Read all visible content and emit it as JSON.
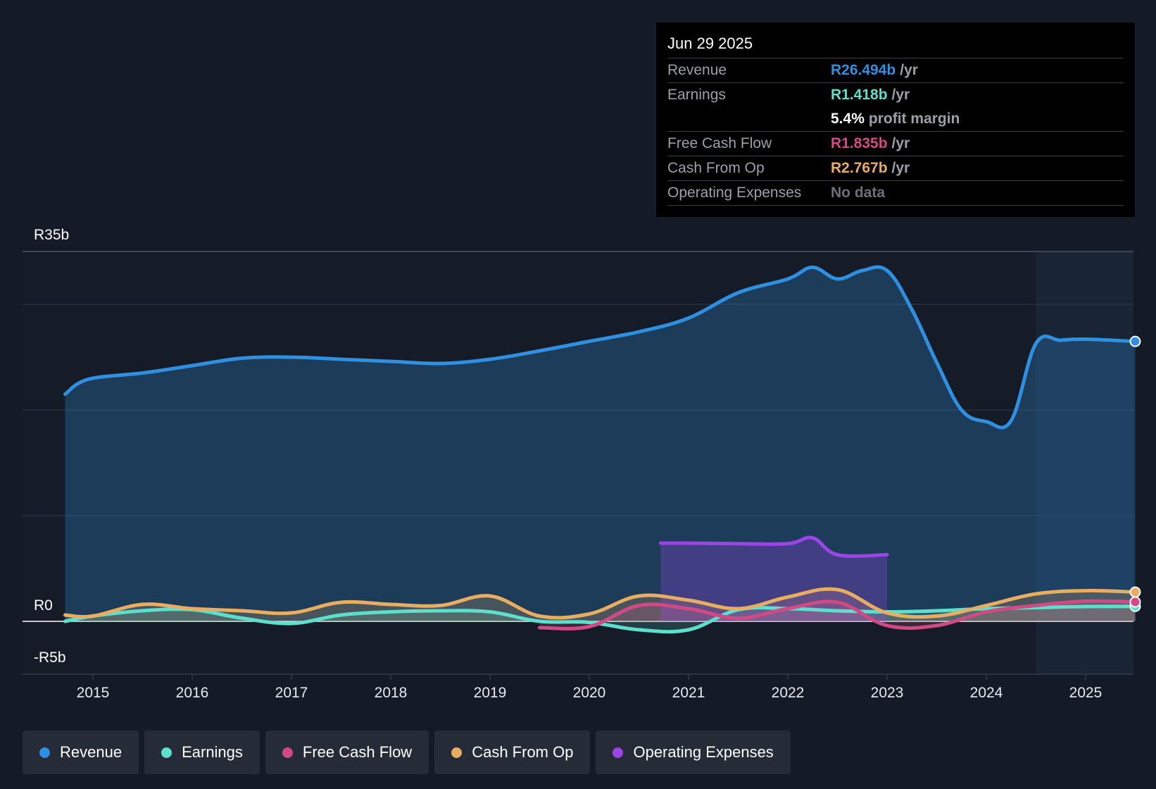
{
  "chart_data": {
    "type": "area",
    "currency_prefix": "R",
    "y_axis": {
      "max_label": "R35b",
      "zero_label": "R0",
      "min_label": "-R5b",
      "ylim": [
        -5,
        35
      ],
      "gridlines": [
        0,
        10,
        20,
        30,
        35
      ]
    },
    "x_axis": {
      "tick_labels": [
        "2015",
        "2016",
        "2017",
        "2018",
        "2019",
        "2020",
        "2021",
        "2022",
        "2023",
        "2024",
        "2025"
      ],
      "ticks": [
        2015,
        2016,
        2017,
        2018,
        2019,
        2020,
        2021,
        2022,
        2023,
        2024,
        2025
      ],
      "xlim": [
        2014.25,
        2025.5
      ]
    },
    "forecast_region_start": 2024.5,
    "series": [
      {
        "name": "Revenue",
        "color": "#2f8fe0",
        "fill": true,
        "points": [
          [
            2014.72,
            21.5
          ],
          [
            2014.95,
            22.9
          ],
          [
            2015.5,
            23.5
          ],
          [
            2016,
            24.2
          ],
          [
            2016.5,
            24.9
          ],
          [
            2017,
            25.0
          ],
          [
            2017.5,
            24.8
          ],
          [
            2018,
            24.6
          ],
          [
            2018.5,
            24.4
          ],
          [
            2019,
            24.8
          ],
          [
            2019.5,
            25.6
          ],
          [
            2020,
            26.5
          ],
          [
            2020.5,
            27.4
          ],
          [
            2021,
            28.7
          ],
          [
            2021.5,
            31.1
          ],
          [
            2022,
            32.4
          ],
          [
            2022.25,
            33.5
          ],
          [
            2022.5,
            32.4
          ],
          [
            2022.75,
            33.2
          ],
          [
            2023,
            33.2
          ],
          [
            2023.25,
            29.5
          ],
          [
            2023.5,
            24.5
          ],
          [
            2023.75,
            20.0
          ],
          [
            2024,
            18.9
          ],
          [
            2024.25,
            19.0
          ],
          [
            2024.5,
            26.3
          ],
          [
            2024.75,
            26.6
          ],
          [
            2025,
            26.7
          ],
          [
            2025.5,
            26.49
          ]
        ]
      },
      {
        "name": "Earnings",
        "color": "#5ce0cd",
        "fill": true,
        "points": [
          [
            2014.72,
            0.0
          ],
          [
            2015,
            0.5
          ],
          [
            2015.5,
            1.0
          ],
          [
            2016,
            1.1
          ],
          [
            2016.5,
            0.3
          ],
          [
            2017,
            -0.2
          ],
          [
            2017.5,
            0.6
          ],
          [
            2018,
            0.9
          ],
          [
            2018.5,
            1.0
          ],
          [
            2019,
            0.9
          ],
          [
            2019.5,
            0.0
          ],
          [
            2020,
            -0.1
          ],
          [
            2020.5,
            -0.8
          ],
          [
            2021,
            -0.8
          ],
          [
            2021.5,
            1.1
          ],
          [
            2022,
            1.2
          ],
          [
            2022.5,
            1.0
          ],
          [
            2023,
            0.9
          ],
          [
            2023.5,
            1.0
          ],
          [
            2024,
            1.2
          ],
          [
            2024.5,
            1.3
          ],
          [
            2025,
            1.4
          ],
          [
            2025.5,
            1.418
          ]
        ]
      },
      {
        "name": "Free Cash Flow",
        "color": "#d14a85",
        "fill": true,
        "points": [
          [
            2019.5,
            -0.6
          ],
          [
            2020,
            -0.5
          ],
          [
            2020.5,
            1.5
          ],
          [
            2021,
            1.2
          ],
          [
            2021.5,
            0.3
          ],
          [
            2022,
            1.2
          ],
          [
            2022.5,
            1.8
          ],
          [
            2023,
            -0.4
          ],
          [
            2023.5,
            -0.4
          ],
          [
            2024,
            0.9
          ],
          [
            2024.5,
            1.5
          ],
          [
            2025,
            1.9
          ],
          [
            2025.5,
            1.835
          ]
        ]
      },
      {
        "name": "Cash From Op",
        "color": "#e9ad62",
        "fill": true,
        "points": [
          [
            2014.72,
            0.6
          ],
          [
            2015,
            0.5
          ],
          [
            2015.5,
            1.6
          ],
          [
            2016,
            1.2
          ],
          [
            2016.5,
            1.0
          ],
          [
            2017,
            0.8
          ],
          [
            2017.5,
            1.8
          ],
          [
            2018,
            1.6
          ],
          [
            2018.5,
            1.5
          ],
          [
            2019,
            2.4
          ],
          [
            2019.5,
            0.5
          ],
          [
            2020,
            0.7
          ],
          [
            2020.5,
            2.4
          ],
          [
            2021,
            2.0
          ],
          [
            2021.5,
            1.2
          ],
          [
            2022,
            2.3
          ],
          [
            2022.5,
            3.0
          ],
          [
            2023,
            0.8
          ],
          [
            2023.5,
            0.5
          ],
          [
            2024,
            1.5
          ],
          [
            2024.5,
            2.6
          ],
          [
            2025,
            2.9
          ],
          [
            2025.5,
            2.767
          ]
        ]
      },
      {
        "name": "Operating Expenses",
        "color": "#9b45e6",
        "fill": true,
        "points": [
          [
            2020.72,
            7.4
          ],
          [
            2021,
            7.4
          ],
          [
            2021.5,
            7.35
          ],
          [
            2022,
            7.35
          ],
          [
            2022.25,
            7.9
          ],
          [
            2022.5,
            6.3
          ],
          [
            2023,
            6.3
          ]
        ]
      }
    ]
  },
  "tooltip": {
    "date": "Jun 29 2025",
    "rows": [
      {
        "label": "Revenue",
        "value": "R26.494b",
        "unit": "/yr",
        "color": "#2f8fe0"
      },
      {
        "label": "Earnings",
        "value": "R1.418b",
        "unit": "/yr",
        "color": "#5ce0cd"
      },
      {
        "label": "",
        "value": "5.4%",
        "unit": "profit margin",
        "color": "#ffffff"
      },
      {
        "label": "Free Cash Flow",
        "value": "R1.835b",
        "unit": "/yr",
        "color": "#d14a85"
      },
      {
        "label": "Cash From Op",
        "value": "R2.767b",
        "unit": "/yr",
        "color": "#e9ad62"
      },
      {
        "label": "Operating Expenses",
        "value": "No data",
        "unit": "",
        "color": "#6b7079"
      }
    ]
  },
  "legend": [
    {
      "label": "Revenue",
      "color": "#2f8fe0"
    },
    {
      "label": "Earnings",
      "color": "#5ce0cd"
    },
    {
      "label": "Free Cash Flow",
      "color": "#d14a85"
    },
    {
      "label": "Cash From Op",
      "color": "#e9ad62"
    },
    {
      "label": "Operating Expenses",
      "color": "#9b45e6"
    }
  ]
}
